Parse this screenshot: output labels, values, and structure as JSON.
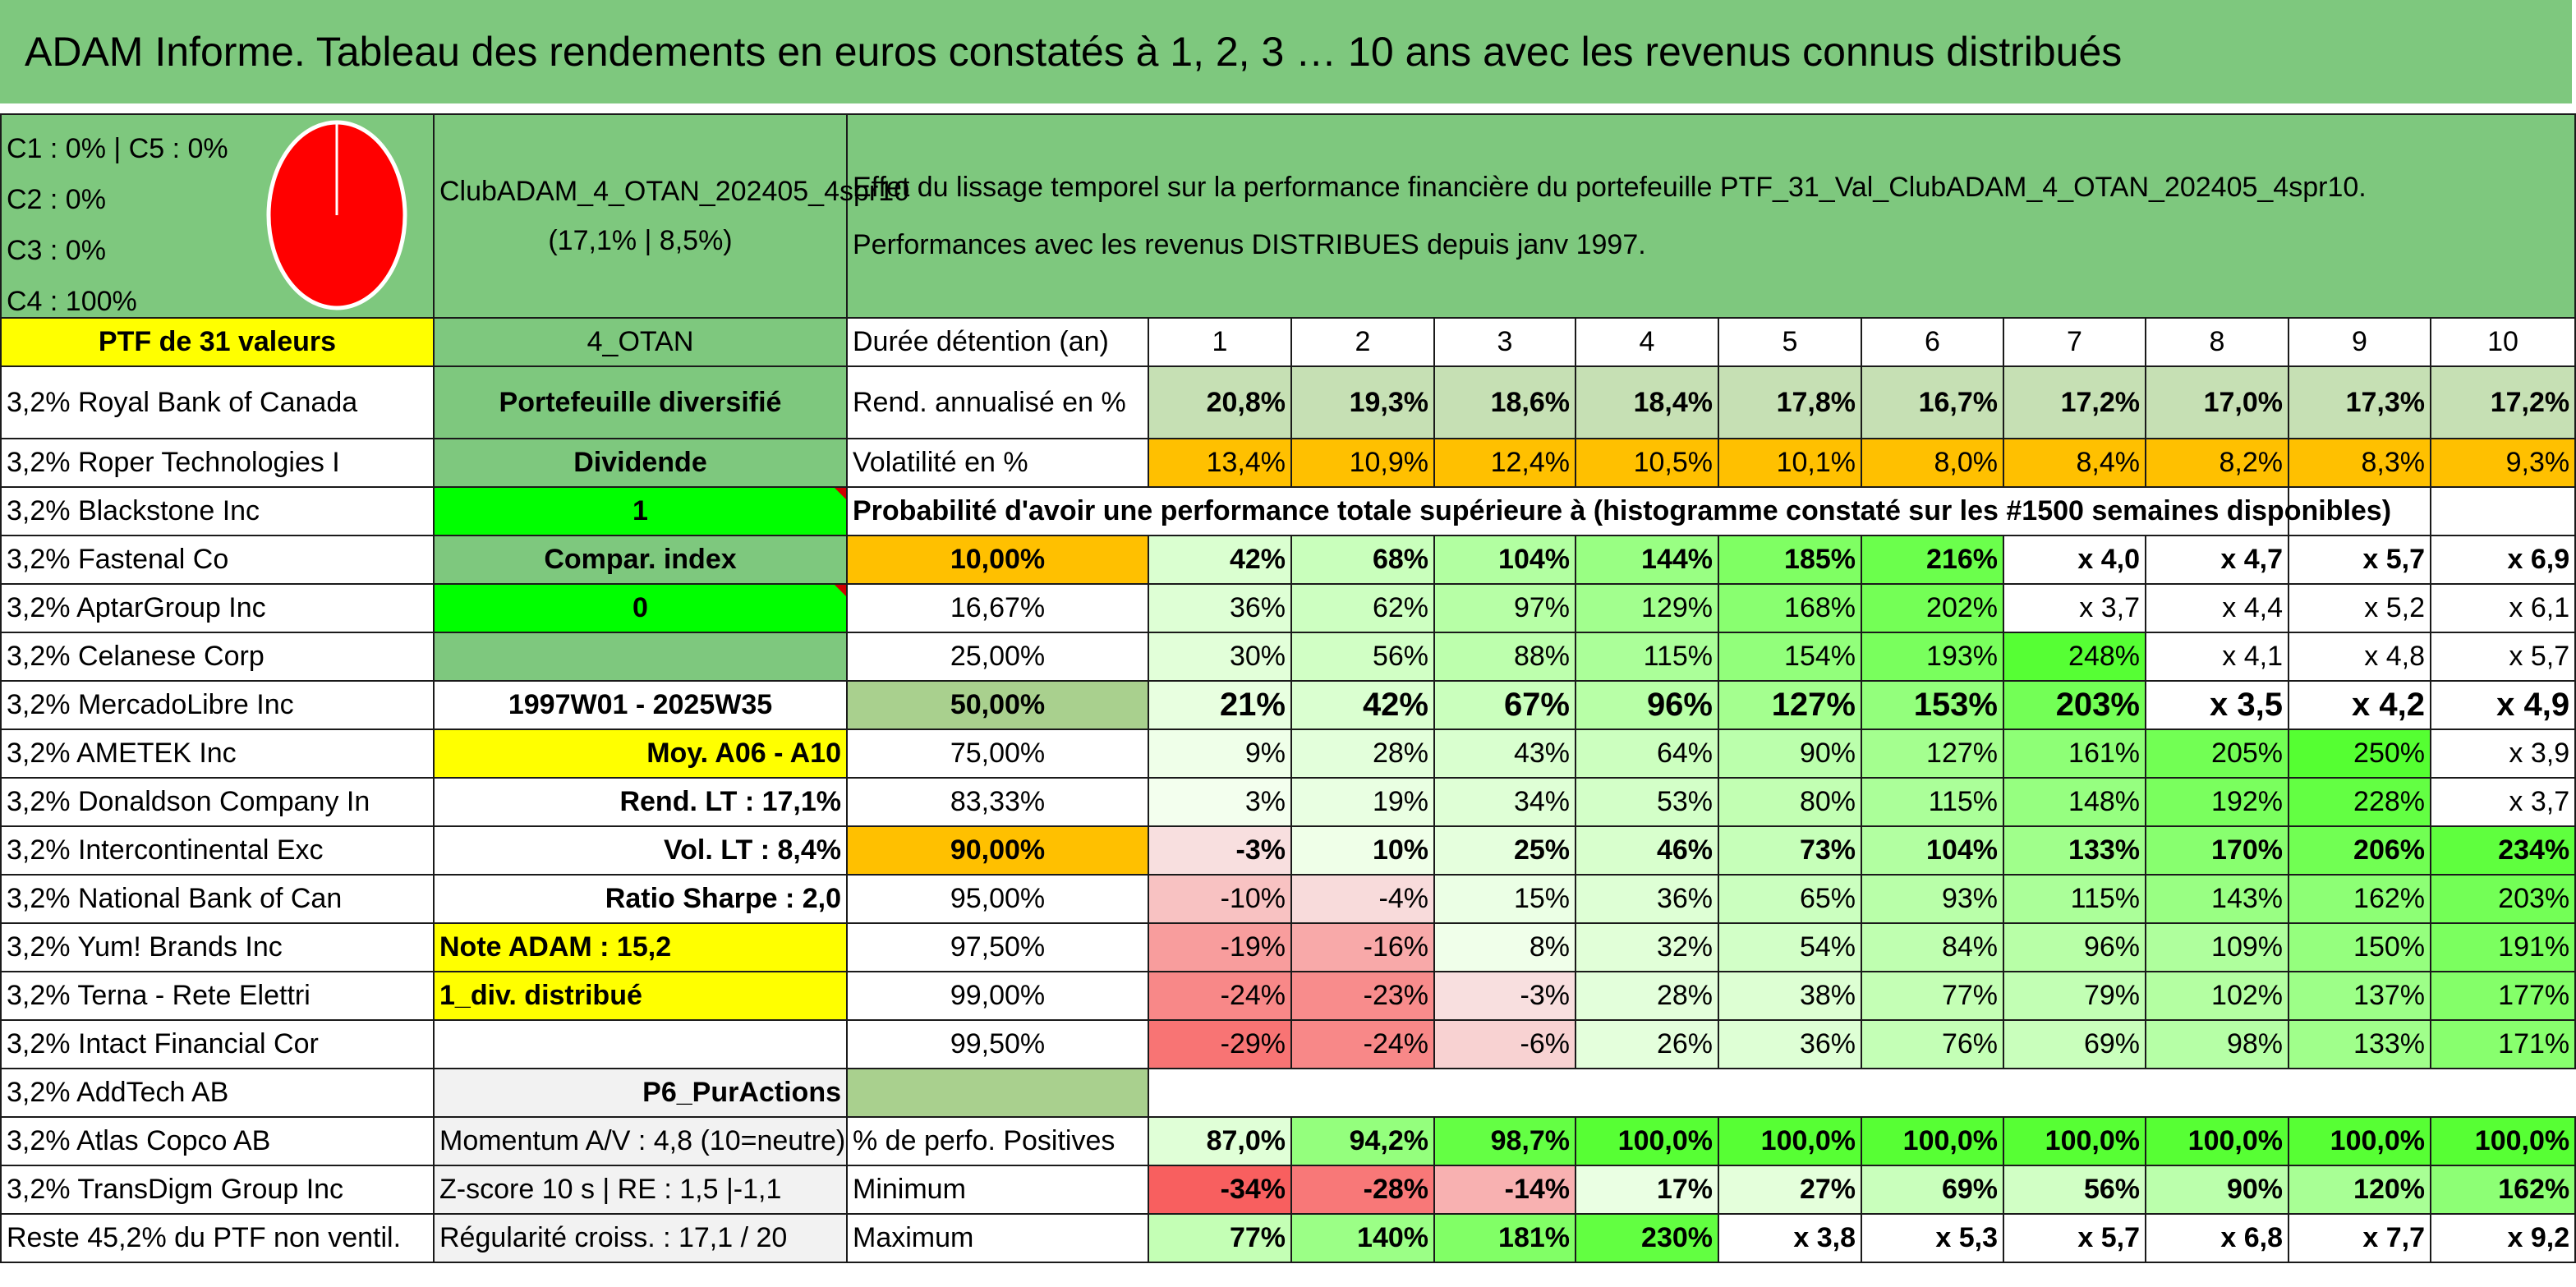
{
  "title": "ADAM Informe. Tableau des rendements en euros constatés à 1, 2, 3 … 10 ans avec les revenus connus distribués",
  "classes": [
    "C1 : 0% | C5 : 0%",
    "C2 : 0%",
    "C3 : 0%",
    "C4 : 100%"
  ],
  "pie_color": "#ff0000",
  "portfolio": {
    "name": "ClubADAM_4_OTAN_202405_4spr10",
    "stats": "(17,1% | 8,5%)",
    "effect_line1": "Effet du lissage temporel sur la performance financière du portefeuille PTF_31_Val_ClubADAM_4_OTAN_202405_4spr10.",
    "effect_line2": "Performances avec les revenus DISTRIBUES depuis janv 1997."
  },
  "left_rows": [
    "PTF de 31 valeurs",
    "3,2% Royal Bank of Canada",
    "3,2% Roper Technologies I",
    "3,2% Blackstone Inc",
    "3,2% Fastenal Co",
    "3,2% AptarGroup Inc",
    "3,2% Celanese Corp",
    "3,2% MercadoLibre Inc",
    "3,2% AMETEK Inc",
    "3,2% Donaldson Company In",
    "3,2% Intercontinental Exc",
    "3,2% National Bank of Can",
    "3,2% Yum! Brands Inc",
    "3,2% Terna - Rete Elettri",
    "3,2% Intact Financial Cor",
    "3,2% AddTech AB",
    "3,2% Atlas Copco AB",
    "3,2% TransDigm Group Inc",
    "Reste 45,2% du PTF non ventil."
  ],
  "mid_rows": [
    "4_OTAN",
    "Portefeuille diversifié",
    "Dividende",
    "1",
    "Compar. index",
    "0",
    "",
    "1997W01 - 2025W35",
    "Moy. A06 - A10",
    "Rend. LT : 17,1%",
    "Vol. LT : 8,4%",
    "Ratio Sharpe : 2,0",
    "Note ADAM : 15,2",
    "1_div. distribué",
    "",
    "P6_PurActions",
    "Momentum A/V : 4,8 (10=neutre)",
    "Z-score 10 s | RE : 1,5 |-1,1",
    "Régularité croiss. : 17,1 / 20"
  ],
  "header_label": "Durée détention (an)",
  "years": [
    "1",
    "2",
    "3",
    "4",
    "5",
    "6",
    "7",
    "8",
    "9",
    "10"
  ],
  "rend_label": "Rend. annualisé en %",
  "rend": [
    "20,8%",
    "19,3%",
    "18,6%",
    "18,4%",
    "17,8%",
    "16,7%",
    "17,2%",
    "17,0%",
    "17,3%",
    "17,2%"
  ],
  "vol_label": "Volatilité en %",
  "vol": [
    "13,4%",
    "10,9%",
    "12,4%",
    "10,5%",
    "10,1%",
    "8,0%",
    "8,4%",
    "8,2%",
    "8,3%",
    "9,3%"
  ],
  "prob_title": "Probabilité d'avoir une performance totale supérieure à (histogramme constaté sur les #1500 semaines disponibles)",
  "prob_rows": [
    {
      "p": "10,00%",
      "v": [
        "42%",
        "68%",
        "104%",
        "144%",
        "185%",
        "216%",
        "x 4,0",
        "x 4,7",
        "x 5,7",
        "x 6,9"
      ]
    },
    {
      "p": "16,67%",
      "v": [
        "36%",
        "62%",
        "97%",
        "129%",
        "168%",
        "202%",
        "x 3,7",
        "x 4,4",
        "x 5,2",
        "x 6,1"
      ]
    },
    {
      "p": "25,00%",
      "v": [
        "30%",
        "56%",
        "88%",
        "115%",
        "154%",
        "193%",
        "248%",
        "x 4,1",
        "x 4,8",
        "x 5,7"
      ]
    },
    {
      "p": "50,00%",
      "v": [
        "21%",
        "42%",
        "67%",
        "96%",
        "127%",
        "153%",
        "203%",
        "x 3,5",
        "x 4,2",
        "x 4,9"
      ]
    },
    {
      "p": "75,00%",
      "v": [
        "9%",
        "28%",
        "43%",
        "64%",
        "90%",
        "127%",
        "161%",
        "205%",
        "250%",
        "x 3,9"
      ]
    },
    {
      "p": "83,33%",
      "v": [
        "3%",
        "19%",
        "34%",
        "53%",
        "80%",
        "115%",
        "148%",
        "192%",
        "228%",
        "x 3,7"
      ]
    },
    {
      "p": "90,00%",
      "v": [
        "-3%",
        "10%",
        "25%",
        "46%",
        "73%",
        "104%",
        "133%",
        "170%",
        "206%",
        "234%"
      ]
    },
    {
      "p": "95,00%",
      "v": [
        "-10%",
        "-4%",
        "15%",
        "36%",
        "65%",
        "93%",
        "115%",
        "143%",
        "162%",
        "203%"
      ]
    },
    {
      "p": "97,50%",
      "v": [
        "-19%",
        "-16%",
        "8%",
        "32%",
        "54%",
        "84%",
        "96%",
        "109%",
        "150%",
        "191%"
      ]
    },
    {
      "p": "99,00%",
      "v": [
        "-24%",
        "-23%",
        "-3%",
        "28%",
        "38%",
        "77%",
        "79%",
        "102%",
        "137%",
        "177%"
      ]
    },
    {
      "p": "99,50%",
      "v": [
        "-29%",
        "-24%",
        "-6%",
        "26%",
        "36%",
        "76%",
        "69%",
        "98%",
        "133%",
        "171%"
      ]
    }
  ],
  "pos_label": "% de perfo. Positives",
  "pos": [
    "87,0%",
    "94,2%",
    "98,7%",
    "100,0%",
    "100,0%",
    "100,0%",
    "100,0%",
    "100,0%",
    "100,0%",
    "100,0%"
  ],
  "min_label": "Minimum",
  "min": [
    "-34%",
    "-28%",
    "-14%",
    "17%",
    "27%",
    "69%",
    "56%",
    "90%",
    "120%",
    "162%"
  ],
  "max_label": "Maximum",
  "max": [
    "77%",
    "140%",
    "181%",
    "230%",
    "x 3,8",
    "x 5,3",
    "x 5,7",
    "x 6,8",
    "x 7,7",
    "x 9,2"
  ]
}
